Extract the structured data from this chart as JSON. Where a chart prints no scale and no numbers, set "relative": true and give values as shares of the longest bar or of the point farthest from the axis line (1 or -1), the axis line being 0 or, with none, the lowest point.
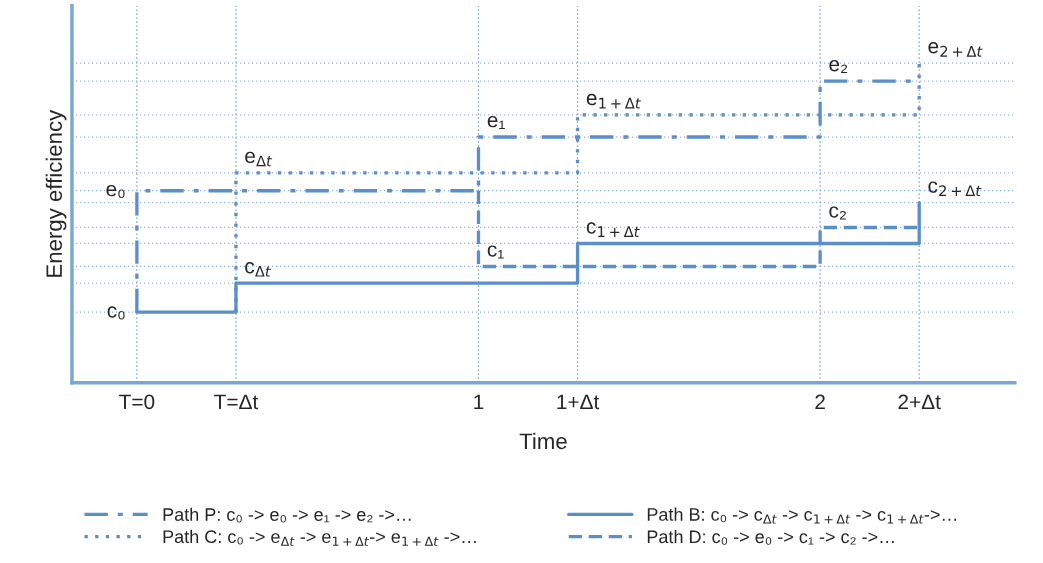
{
  "chart_data": {
    "type": "line",
    "relative": true,
    "xlabel": "Time",
    "ylabel": "Energy efficiency",
    "xlim": [
      -0.19,
      2.57
    ],
    "xticks": [
      {
        "value": 0,
        "label": "T=0"
      },
      {
        "value": 0.29,
        "label": "T=Δt"
      },
      {
        "value": 1,
        "label": "1"
      },
      {
        "value": 1.29,
        "label": "1+Δt"
      },
      {
        "value": 2,
        "label": "2"
      },
      {
        "value": 2.29,
        "label": "2+Δt"
      }
    ],
    "series": [
      {
        "name": "Path P: c₀ -> e₀ -> e₁ -> e₂ ->…",
        "color": "#5b8fc9",
        "line_style": "dashdot",
        "x": [
          0,
          0,
          1,
          1,
          2,
          2,
          2.29
        ],
        "values": [
          0.221,
          0.601,
          0.601,
          0.769,
          0.769,
          0.944,
          0.944
        ]
      },
      {
        "name": "Path C: c₀ -> e$_{Δt}$ -> e$_{1+Δt}$-> e$_{1+Δt}$ ->…",
        "color": "#5b8fc9",
        "line_style": "dotted",
        "x": [
          0.29,
          0.29,
          1.29,
          1.29,
          2.29,
          2.29
        ],
        "values": [
          0.221,
          0.657,
          0.657,
          0.838,
          0.838,
          1
        ]
      },
      {
        "name": "Path B: c₀ -> c$_{Δt}$ -> c$_{1+Δt}$ -> c$_{1+Δt}$->…",
        "color": "#5b8fc9",
        "line_style": "solid",
        "x": [
          0,
          0.29,
          0.29,
          1.29,
          1.29,
          2.29,
          2.29
        ],
        "values": [
          0.221,
          0.221,
          0.312,
          0.312,
          0.436,
          0.436,
          0.564
        ]
      },
      {
        "name": "Path D: c₀ -> e₀ -> c₁ -> c₂ ->…",
        "color": "#5b8fc9",
        "line_style": "dashed",
        "x": [
          1,
          1,
          2,
          2,
          2.29
        ],
        "values": [
          0.601,
          0.364,
          0.364,
          0.486,
          0.486
        ]
      }
    ],
    "ref_lines": [
      {
        "axis": "x",
        "value": 0,
        "color": "#5b8fc9",
        "line_style": "dotted"
      },
      {
        "axis": "x",
        "value": 0.29,
        "color": "#5b8fc9",
        "line_style": "dotted"
      },
      {
        "axis": "x",
        "value": 1,
        "color": "#5b8fc9",
        "line_style": "dotted"
      },
      {
        "axis": "x",
        "value": 1.29,
        "color": "#5b8fc9",
        "line_style": "dotted"
      },
      {
        "axis": "x",
        "value": 2,
        "color": "#5b8fc9",
        "line_style": "dotted"
      },
      {
        "axis": "x",
        "value": 2.29,
        "color": "#5b8fc9",
        "line_style": "dotted"
      },
      {
        "axis": "y",
        "value": 1,
        "color": "#8fb3dd",
        "line_style": "dotted"
      },
      {
        "axis": "y",
        "value": 0.944,
        "color": "#8fb3dd",
        "line_style": "dotted"
      },
      {
        "axis": "y",
        "value": 0.838,
        "color": "#8fb3dd",
        "line_style": "dotted"
      },
      {
        "axis": "y",
        "value": 0.769,
        "color": "#8fb3dd",
        "line_style": "dotted"
      },
      {
        "axis": "y",
        "value": 0.657,
        "color": "#8fb3dd",
        "line_style": "dotted"
      },
      {
        "axis": "y",
        "value": 0.601,
        "color": "#8fb3dd",
        "line_style": "dotted"
      },
      {
        "axis": "y",
        "value": 0.564,
        "color": "#8fb3dd",
        "line_style": "dotted"
      },
      {
        "axis": "y",
        "value": 0.486,
        "color": "#8fb3dd",
        "line_style": "dotted"
      },
      {
        "axis": "y",
        "value": 0.436,
        "color": "#8fb3dd",
        "line_style": "dotted"
      },
      {
        "axis": "y",
        "value": 0.364,
        "color": "#8fb3dd",
        "line_style": "dotted"
      },
      {
        "axis": "y",
        "value": 0.312,
        "color": "#8fb3dd",
        "line_style": "dotted"
      },
      {
        "axis": "y",
        "value": 0.221,
        "color": "#8fb3dd",
        "line_style": "dotted"
      }
    ],
    "annotations": [
      {
        "text": "e₀",
        "x": 0,
        "y": 0.601
      },
      {
        "text": "c₀",
        "x": 0,
        "y": 0.221
      },
      {
        "text": "e$_{Δt}$",
        "x": 0.29,
        "y": 0.657
      },
      {
        "text": "c$_{Δt}$",
        "x": 0.29,
        "y": 0.312
      },
      {
        "text": "e₁",
        "x": 1,
        "y": 0.769
      },
      {
        "text": "c₁",
        "x": 1,
        "y": 0.364
      },
      {
        "text": "e$_{1+Δt}$",
        "x": 1.29,
        "y": 0.838
      },
      {
        "text": "c$_{1+Δt}$",
        "x": 1.29,
        "y": 0.436
      },
      {
        "text": "e₂",
        "x": 2,
        "y": 0.944
      },
      {
        "text": "c₂",
        "x": 2,
        "y": 0.486
      },
      {
        "text": "e$_{2+Δt}$",
        "x": 2.29,
        "y": 1
      },
      {
        "text": "c$_{2+Δt}$",
        "x": 2.29,
        "y": 0.564
      }
    ],
    "legend": "bottom",
    "grid": false
  }
}
